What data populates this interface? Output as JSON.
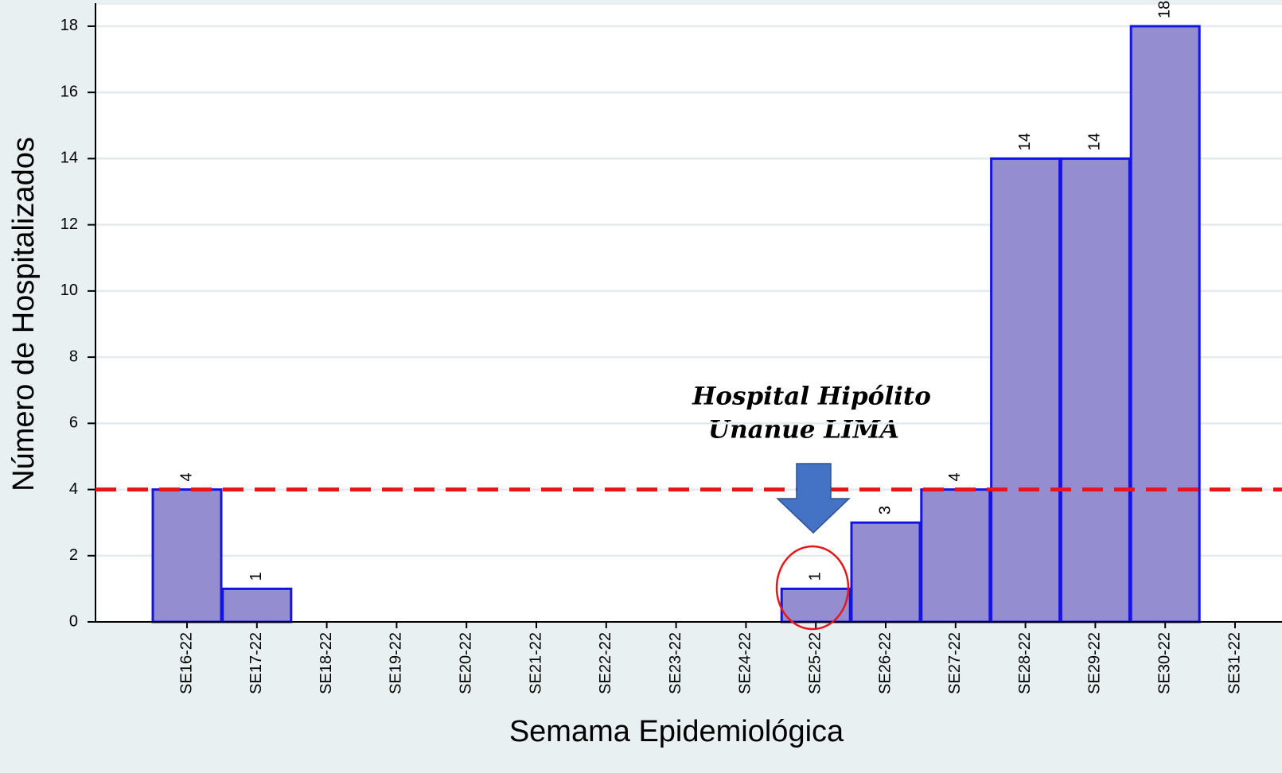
{
  "chart_data": {
    "type": "bar",
    "categories": [
      "SE16-22",
      "SE17-22",
      "SE18-22",
      "SE19-22",
      "SE20-22",
      "SE21-22",
      "SE22-22",
      "SE23-22",
      "SE24-22",
      "SE25-22",
      "SE26-22",
      "SE27-22",
      "SE28-22",
      "SE29-22",
      "SE30-22",
      "SE31-22"
    ],
    "values": [
      4,
      1,
      0,
      0,
      0,
      0,
      0,
      0,
      0,
      1,
      3,
      4,
      14,
      14,
      18,
      0
    ],
    "value_labels": [
      "4",
      "1",
      null,
      null,
      null,
      null,
      null,
      null,
      null,
      "1",
      "3",
      "4",
      "14",
      "14",
      "18",
      null
    ],
    "color": "#948ed0",
    "edge_color": "#1515e0",
    "ylim": [
      0,
      18.6
    ],
    "yticks": [
      0,
      2,
      4,
      6,
      8,
      10,
      12,
      14,
      16,
      18
    ],
    "grid": true,
    "x_label": "Semama Epidemiológica",
    "y_label": "Número de Hospitalizados",
    "reference_line": {
      "value": 4,
      "color": "#e8161a"
    },
    "annotation": [
      "Hospital Hipólito",
      "Unanue LIMA"
    ]
  }
}
